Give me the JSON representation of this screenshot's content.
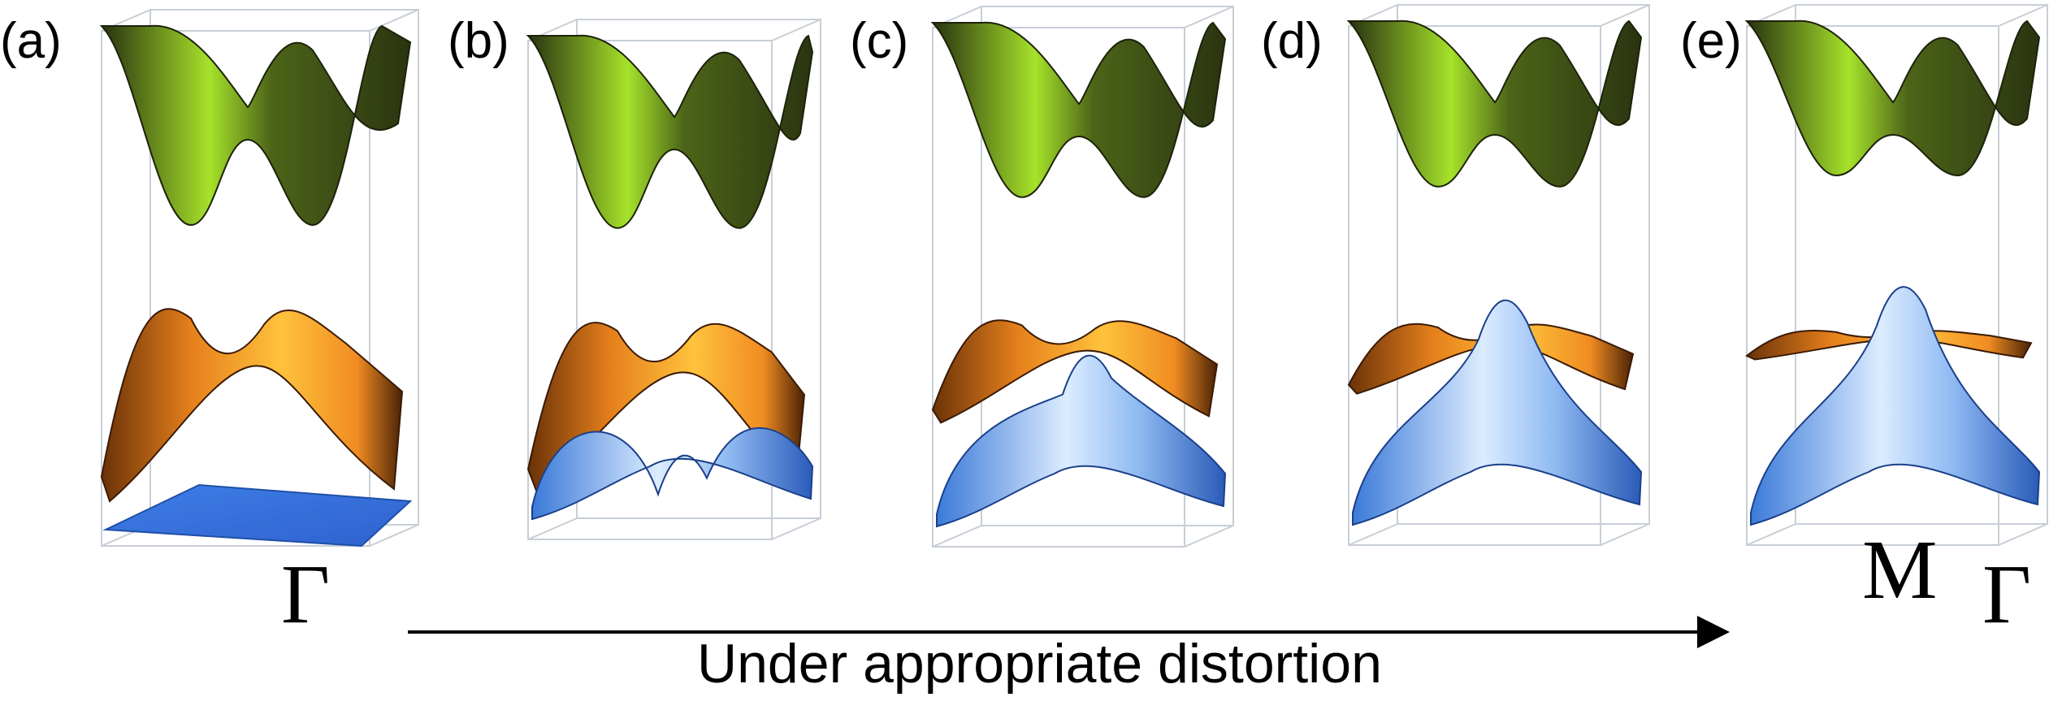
{
  "panels": [
    {
      "label": "(a)",
      "flat_band": "lower",
      "gap": 0.0
    },
    {
      "label": "(b)",
      "flat_band": "lower",
      "gap": 0.15
    },
    {
      "label": "(c)",
      "flat_band": "none",
      "gap": 0.55
    },
    {
      "label": "(d)",
      "flat_band": "middle",
      "gap": 0.75
    },
    {
      "label": "(e)",
      "flat_band": "middle",
      "gap": 1.0
    }
  ],
  "kpoints": {
    "gamma_a": "Γ",
    "gamma_e": "Γ",
    "m_e": "M"
  },
  "arrow": {
    "caption": "Under appropriate distortion"
  },
  "colors": {
    "top_band_light": "#a6e22a",
    "top_band_dark": "#2f3a12",
    "middle_band_light": "#ffb13a",
    "middle_band_dark": "#5a2a08",
    "bottom_band_light": "#dcecff",
    "bottom_band_dark": "#2a63c9",
    "box": "#c7ced6"
  }
}
